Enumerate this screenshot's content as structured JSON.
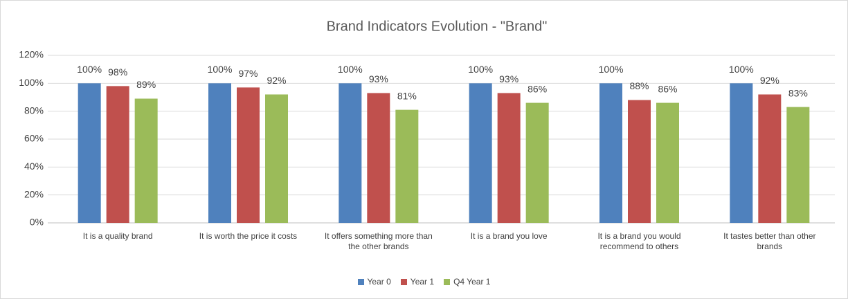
{
  "chart_data": {
    "type": "bar",
    "title": "Brand Indicators Evolution - \"Brand\"",
    "categories": [
      "It is a quality brand",
      "It is worth the price it costs",
      "It offers something more than the other brands",
      "It is a brand you love",
      "It is a brand you would recommend to others",
      "It tastes better than other brands"
    ],
    "series": [
      {
        "name": "Year 0",
        "color": "#4f81bd",
        "values": [
          100,
          100,
          100,
          100,
          100,
          100
        ],
        "value_labels": [
          "100%",
          "100%",
          "100%",
          "100%",
          "100%",
          "100%"
        ]
      },
      {
        "name": "Year 1",
        "color": "#c0504d",
        "values": [
          98,
          97,
          93,
          93,
          88,
          92
        ],
        "value_labels": [
          "98%",
          "97%",
          "93%",
          "93%",
          "88%",
          "92%"
        ]
      },
      {
        "name": "Q4 Year 1",
        "color": "#9bbb59",
        "values": [
          89,
          92,
          81,
          86,
          86,
          83
        ],
        "value_labels": [
          "89%",
          "92%",
          "81%",
          "86%",
          "86%",
          "83%"
        ]
      }
    ],
    "ylim": [
      0,
      120
    ],
    "yticks": [
      {
        "value": 0,
        "label": "0%"
      },
      {
        "value": 20,
        "label": "20%"
      },
      {
        "value": 40,
        "label": "40%"
      },
      {
        "value": 60,
        "label": "60%"
      },
      {
        "value": 80,
        "label": "80%"
      },
      {
        "value": 100,
        "label": "100%"
      },
      {
        "value": 120,
        "label": "120%"
      }
    ],
    "grid": true,
    "legend": "bottom"
  }
}
